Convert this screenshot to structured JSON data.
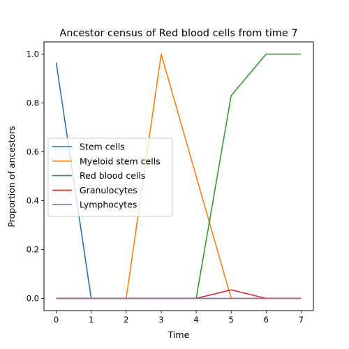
{
  "chart_data": {
    "type": "line",
    "title": "Ancestor census of Red blood cells from time 7",
    "xlabel": "Time",
    "ylabel": "Proportion of ancestors",
    "x": [
      0,
      1,
      2,
      3,
      4,
      5,
      6,
      7
    ],
    "xlim": [
      -0.35,
      7.35
    ],
    "ylim": [
      -0.05,
      1.05
    ],
    "xticks": [
      "0",
      "1",
      "2",
      "3",
      "4",
      "5",
      "6",
      "7"
    ],
    "yticks": [
      "0.0",
      "0.2",
      "0.4",
      "0.6",
      "0.8",
      "1.0"
    ],
    "grid": false,
    "legend_position": "center-left",
    "series": [
      {
        "name": "Stem cells",
        "color": "#1f77b4",
        "values": [
          0.965,
          0,
          0,
          0,
          0,
          0,
          0,
          0
        ]
      },
      {
        "name": "Myeloid stem cells",
        "color": "#ff7f0e",
        "values": [
          0,
          0,
          0,
          1.0,
          0.5,
          0,
          0,
          0
        ]
      },
      {
        "name": "Red blood cells",
        "color": "#2ca02c",
        "values": [
          0,
          0,
          0,
          0,
          0,
          0.83,
          1.0,
          1.0
        ]
      },
      {
        "name": "Granulocytes",
        "color": "#d62728",
        "values": [
          0,
          0,
          0,
          0,
          0,
          0.035,
          0,
          0
        ]
      },
      {
        "name": "Lymphocytes",
        "color": "#9467bd",
        "values": [
          0,
          0,
          0,
          0,
          0,
          0,
          0,
          0
        ]
      }
    ]
  }
}
